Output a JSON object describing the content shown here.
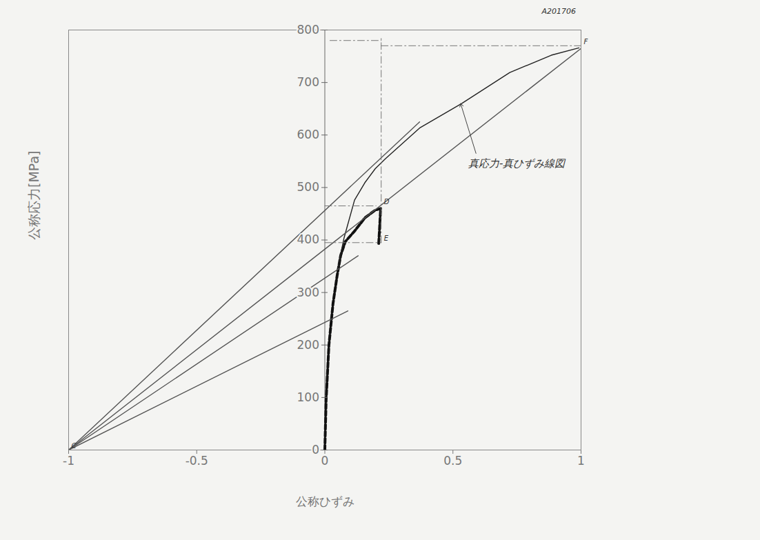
{
  "chart_data": {
    "type": "line",
    "x_label": "公称ひずみ",
    "y_label": "公称応力[MPa]",
    "xlim": [
      -1,
      1
    ],
    "xticks": [
      -1,
      -0.5,
      0,
      0.5,
      1
    ],
    "ylim": [
      0,
      800
    ],
    "yticks": [
      0,
      100,
      200,
      300,
      400,
      500,
      600,
      700,
      800
    ],
    "grid": false,
    "series": [
      {
        "color": "#111111",
        "line_style": "dashed",
        "x": [
          0,
          0.005,
          0.016,
          0.032,
          0.048,
          0.062,
          0.08,
          0.116,
          0.156,
          0.197,
          0.218,
          0.21
        ],
        "values": [
          0,
          95,
          200,
          279,
          332,
          371,
          397,
          417,
          442,
          457,
          460,
          391
        ]
      },
      {
        "color": "#222222",
        "line_style": "solid",
        "x": [
          0.05,
          0.075,
          0.116,
          0.156,
          0.197,
          0.237,
          0.372,
          0.534,
          0.722,
          0.884,
          0.992
        ],
        "values": [
          345,
          404,
          476,
          509,
          536,
          555,
          614,
          660,
          719,
          752,
          766
        ]
      },
      {
        "color": "#555555",
        "line_style": "solid",
        "x": [
          -1,
          1
        ],
        "values": [
          0,
          765
        ]
      },
      {
        "color": "#555555",
        "line_style": "solid",
        "x": [
          -1,
          0.37
        ],
        "values": [
          0,
          625
        ]
      },
      {
        "color": "#555555",
        "line_style": "solid",
        "x": [
          -1,
          0.13
        ],
        "values": [
          0,
          370
        ]
      },
      {
        "color": "#555555",
        "line_style": "solid",
        "x": [
          -1,
          0.09
        ],
        "values": [
          0,
          265
        ]
      },
      {
        "color": "#777777",
        "line_style": "dashdot",
        "x": [
          0,
          0.2
        ],
        "values": [
          465,
          465
        ]
      },
      {
        "color": "#777777",
        "line_style": "dashdot",
        "x": [
          0,
          0.22
        ],
        "values": [
          395,
          395
        ]
      },
      {
        "color": "#777777",
        "line_style": "dashdot",
        "x": [
          0.22,
          0.22
        ],
        "values": [
          395,
          785
        ]
      },
      {
        "color": "#777777",
        "line_style": "dashdot",
        "x": [
          0.22,
          1
        ],
        "values": [
          770,
          770
        ]
      },
      {
        "color": "#777777",
        "line_style": "dashdot",
        "x": [
          0.02,
          0.22
        ],
        "values": [
          780,
          780
        ]
      }
    ],
    "annotations": [
      {
        "text": "真応力-真ひずみ線図",
        "x": 0.56,
        "y": 545,
        "arrow_to": [
          0.53,
          660
        ]
      },
      {
        "text": "A201706",
        "x": 0.98,
        "y": 835
      },
      {
        "text": "C",
        "x": -1,
        "y": 0
      },
      {
        "text": "D",
        "x": 0.22,
        "y": 465
      },
      {
        "text": "E",
        "x": 0.22,
        "y": 395
      },
      {
        "text": "F",
        "x": 1,
        "y": 770
      }
    ]
  }
}
